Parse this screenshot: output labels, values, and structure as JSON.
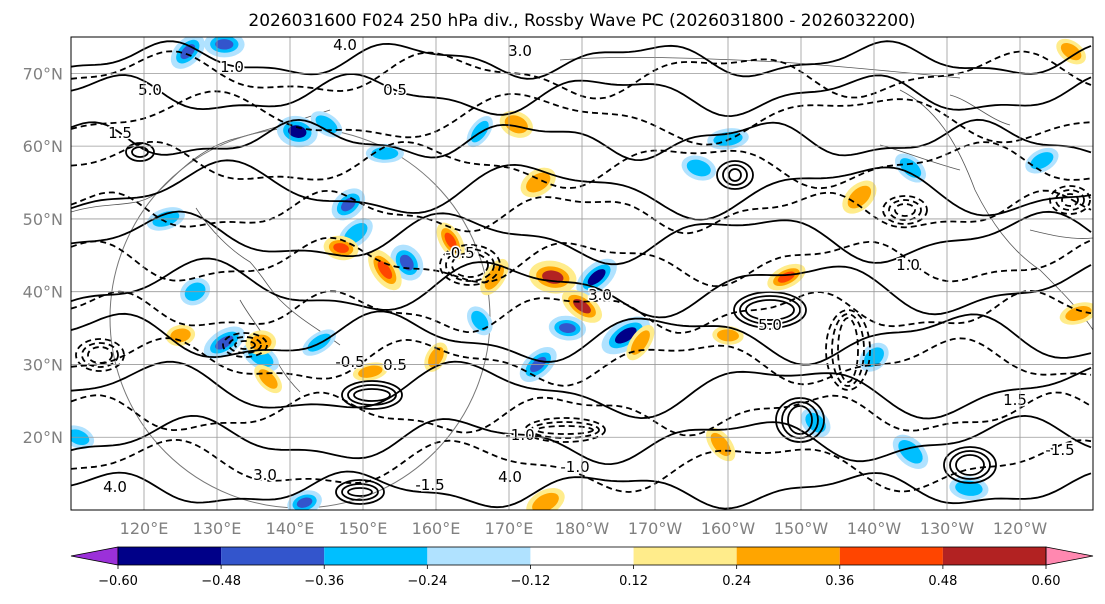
{
  "chart_data": {
    "type": "map",
    "title": "2026031600 F024 250 hPa div., Rossby Wave PC (2026031800 - 2026032200)",
    "projection": "cylindrical, central meridian 180",
    "lon_range": [
      110,
      250
    ],
    "lat_range": [
      10,
      75
    ],
    "grid": true,
    "lat_ticks": [
      {
        "value": 70,
        "label": "70°N"
      },
      {
        "value": 60,
        "label": "60°N"
      },
      {
        "value": 50,
        "label": "50°N"
      },
      {
        "value": 40,
        "label": "40°N"
      },
      {
        "value": 30,
        "label": "30°N"
      },
      {
        "value": 20,
        "label": "20°N"
      }
    ],
    "lon_ticks": [
      {
        "value": 120,
        "label": "120°E"
      },
      {
        "value": 130,
        "label": "130°E"
      },
      {
        "value": 140,
        "label": "140°E"
      },
      {
        "value": 150,
        "label": "150°E"
      },
      {
        "value": 160,
        "label": "160°E"
      },
      {
        "value": 170,
        "label": "170°E"
      },
      {
        "value": 180,
        "label": "180°W"
      },
      {
        "value": 190,
        "label": "170°W"
      },
      {
        "value": 200,
        "label": "160°W"
      },
      {
        "value": 210,
        "label": "150°W"
      },
      {
        "value": 220,
        "label": "140°W"
      },
      {
        "value": 230,
        "label": "130°W"
      },
      {
        "value": 240,
        "label": "120°W"
      }
    ],
    "colorbar": {
      "orientation": "horizontal",
      "extend": "both",
      "levels": [
        -0.72,
        -0.6,
        -0.48,
        -0.36,
        -0.24,
        -0.12,
        0.12,
        0.24,
        0.36,
        0.48,
        0.6,
        0.72
      ],
      "colors": [
        "#9b30d9",
        "#000088",
        "#3355cc",
        "#00bfff",
        "#b0e2ff",
        "#ffffff",
        "#ffec8b",
        "#ffa500",
        "#ff4500",
        "#b22222",
        "#ff88b0"
      ],
      "tick_labels": [
        {
          "value": -0.6,
          "label": "−0.60"
        },
        {
          "value": -0.48,
          "label": "−0.48"
        },
        {
          "value": -0.36,
          "label": "−0.36"
        },
        {
          "value": -0.24,
          "label": "−0.24"
        },
        {
          "value": -0.12,
          "label": "−0.12"
        },
        {
          "value": 0.12,
          "label": "0.12"
        },
        {
          "value": 0.24,
          "label": "0.24"
        },
        {
          "value": 0.36,
          "label": "0.36"
        },
        {
          "value": 0.48,
          "label": "0.48"
        },
        {
          "value": 0.6,
          "label": "0.60"
        }
      ]
    },
    "filled_divergence_blobs": [
      {
        "lon": 126,
        "lat": 73,
        "value": -0.4
      },
      {
        "lon": 131,
        "lat": 74,
        "value": -0.45
      },
      {
        "lon": 141,
        "lat": 62,
        "value": -0.5
      },
      {
        "lon": 145,
        "lat": 63,
        "value": -0.3
      },
      {
        "lon": 153,
        "lat": 59,
        "value": -0.3
      },
      {
        "lon": 148,
        "lat": 52,
        "value": -0.4
      },
      {
        "lon": 149,
        "lat": 48,
        "value": -0.35
      },
      {
        "lon": 156,
        "lat": 44,
        "value": -0.45
      },
      {
        "lon": 166,
        "lat": 36,
        "value": -0.3
      },
      {
        "lon": 178,
        "lat": 35,
        "value": -0.4
      },
      {
        "lon": 182,
        "lat": 42,
        "value": -0.5
      },
      {
        "lon": 186,
        "lat": 34,
        "value": -0.55
      },
      {
        "lon": 174,
        "lat": 30,
        "value": -0.45
      },
      {
        "lon": 123,
        "lat": 50,
        "value": -0.3
      },
      {
        "lon": 127,
        "lat": 40,
        "value": -0.3
      },
      {
        "lon": 131,
        "lat": 33,
        "value": -0.4
      },
      {
        "lon": 136,
        "lat": 31,
        "value": -0.35
      },
      {
        "lon": 144,
        "lat": 33,
        "value": -0.3
      },
      {
        "lon": 166,
        "lat": 62,
        "value": -0.3
      },
      {
        "lon": 196,
        "lat": 57,
        "value": -0.3
      },
      {
        "lon": 200,
        "lat": 61,
        "value": -0.3
      },
      {
        "lon": 225,
        "lat": 57,
        "value": -0.3
      },
      {
        "lon": 243,
        "lat": 58,
        "value": -0.3
      },
      {
        "lon": 220,
        "lat": 31,
        "value": -0.3
      },
      {
        "lon": 212,
        "lat": 22,
        "value": -0.3
      },
      {
        "lon": 225,
        "lat": 18,
        "value": -0.3
      },
      {
        "lon": 233,
        "lat": 13,
        "value": -0.3
      },
      {
        "lon": 142,
        "lat": 11,
        "value": -0.4
      },
      {
        "lon": 111,
        "lat": 20,
        "value": -0.3
      },
      {
        "lon": 153,
        "lat": 43,
        "value": 0.45
      },
      {
        "lon": 147,
        "lat": 46,
        "value": 0.4
      },
      {
        "lon": 162,
        "lat": 47,
        "value": 0.4
      },
      {
        "lon": 176,
        "lat": 42,
        "value": 0.55
      },
      {
        "lon": 180,
        "lat": 38,
        "value": 0.5
      },
      {
        "lon": 168,
        "lat": 42,
        "value": 0.3
      },
      {
        "lon": 171,
        "lat": 63,
        "value": 0.35
      },
      {
        "lon": 174,
        "lat": 55,
        "value": 0.3
      },
      {
        "lon": 188,
        "lat": 33,
        "value": 0.3
      },
      {
        "lon": 200,
        "lat": 34,
        "value": 0.3
      },
      {
        "lon": 218,
        "lat": 53,
        "value": 0.3
      },
      {
        "lon": 208,
        "lat": 42,
        "value": 0.4
      },
      {
        "lon": 248,
        "lat": 37,
        "value": 0.35
      },
      {
        "lon": 247,
        "lat": 73,
        "value": 0.3
      },
      {
        "lon": 160,
        "lat": 31,
        "value": 0.3
      },
      {
        "lon": 151,
        "lat": 29,
        "value": 0.25
      },
      {
        "lon": 125,
        "lat": 34,
        "value": 0.25
      },
      {
        "lon": 136,
        "lat": 33,
        "value": 0.3
      },
      {
        "lon": 199,
        "lat": 19,
        "value": 0.3
      },
      {
        "lon": 175,
        "lat": 11,
        "value": 0.35
      },
      {
        "lon": 137,
        "lat": 28,
        "value": 0.3
      }
    ],
    "contour_labels_visible": [
      "4.0",
      "3.0",
      "5.0",
      "1.0",
      "1.5",
      "0.5",
      "-0.5",
      "-1.0",
      "-1.5"
    ]
  }
}
